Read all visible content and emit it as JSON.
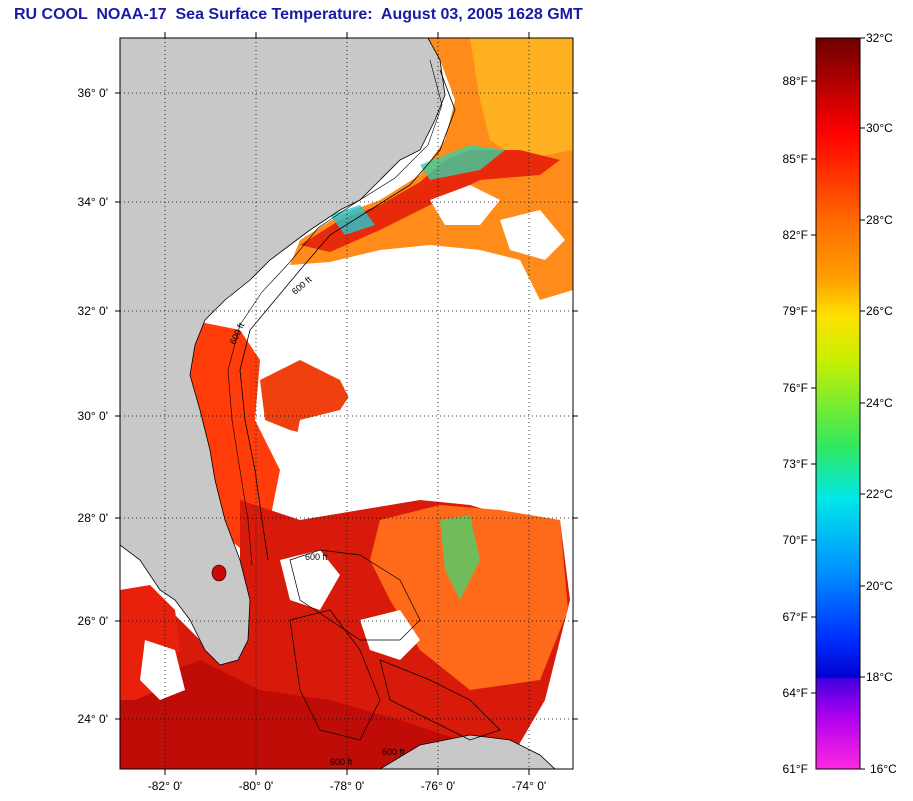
{
  "title": "RU COOL  NOAA-17  Sea Surface Temperature:  August 03, 2005 1628 GMT",
  "map": {
    "lat_range": [
      23.0,
      37.0
    ],
    "lon_range": [
      -83.0,
      -73.0
    ],
    "lat_ticks": [
      {
        "value": 36,
        "label": "36° 0'"
      },
      {
        "value": 34,
        "label": "34° 0'"
      },
      {
        "value": 32,
        "label": "32° 0'"
      },
      {
        "value": 30,
        "label": "30° 0'"
      },
      {
        "value": 28,
        "label": "28° 0'"
      },
      {
        "value": 26,
        "label": "26° 0'"
      },
      {
        "value": 24,
        "label": "24° 0'"
      }
    ],
    "lon_ticks": [
      {
        "value": -82,
        "label": "-82° 0'"
      },
      {
        "value": -80,
        "label": "-80° 0'"
      },
      {
        "value": -78,
        "label": "-78° 0'"
      },
      {
        "value": -76,
        "label": "-76° 0'"
      },
      {
        "value": -74,
        "label": "-74° 0'"
      }
    ],
    "grid": "dotted",
    "land_color": "#c8c8c8",
    "cloud_color": "#ffffff",
    "contour_labels": [
      "600 ft",
      "600 ft",
      "600 ft",
      "600 ft",
      "600 ft"
    ]
  },
  "colorbar": {
    "celsius_range": [
      16,
      32
    ],
    "fahrenheit_labels": [
      "88°F",
      "85°F",
      "82°F",
      "79°F",
      "76°F",
      "73°F",
      "70°F",
      "67°F",
      "64°F",
      "61°F"
    ],
    "fahrenheit_values": [
      88,
      85,
      82,
      79,
      76,
      73,
      70,
      67,
      64,
      61
    ],
    "celsius_labels": [
      "32°C",
      "30°C",
      "28°C",
      "26°C",
      "24°C",
      "22°C",
      "20°C",
      "18°C",
      "16°C"
    ],
    "celsius_values": [
      32,
      30,
      28,
      26,
      24,
      22,
      20,
      18,
      16
    ],
    "colors": [
      "#7a0000",
      "#b80000",
      "#ff0000",
      "#ff5a00",
      "#ff8c00",
      "#ffd000",
      "#f5f500",
      "#9cf01e",
      "#1ee06a",
      "#00e6e6",
      "#00a0ff",
      "#0028ff",
      "#0000c8",
      "#7800ff",
      "#c800e6",
      "#ff1ee6"
    ]
  }
}
